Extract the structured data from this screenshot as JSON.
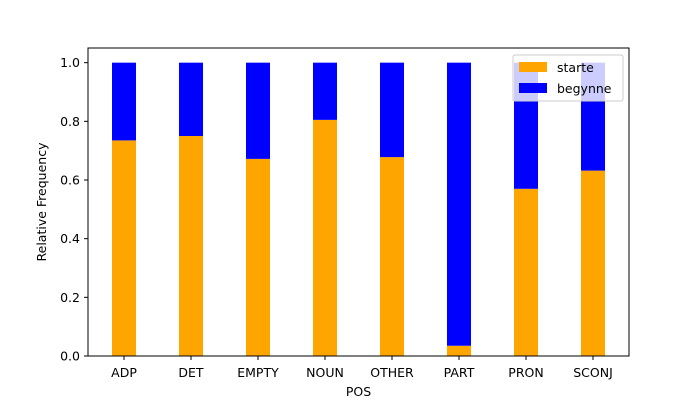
{
  "chart_data": {
    "type": "bar",
    "stacked": true,
    "categories": [
      "ADP",
      "DET",
      "EMPTY",
      "NOUN",
      "OTHER",
      "PART",
      "PRON",
      "SCONJ"
    ],
    "series": [
      {
        "name": "starte",
        "color": "#ffa500",
        "values": [
          0.735,
          0.75,
          0.672,
          0.805,
          0.678,
          0.035,
          0.57,
          0.632
        ]
      },
      {
        "name": "begynne",
        "color": "#0000ff",
        "values": [
          0.265,
          0.25,
          0.328,
          0.195,
          0.322,
          0.965,
          0.43,
          0.368
        ]
      }
    ],
    "title": "",
    "xlabel": "POS",
    "ylabel": "Relative Frequency",
    "ylim": [
      0,
      1.05
    ],
    "yticks": [
      "0.0",
      "0.2",
      "0.4",
      "0.6",
      "0.8",
      "1.0"
    ],
    "grid": false,
    "legend_position": "top-right"
  }
}
